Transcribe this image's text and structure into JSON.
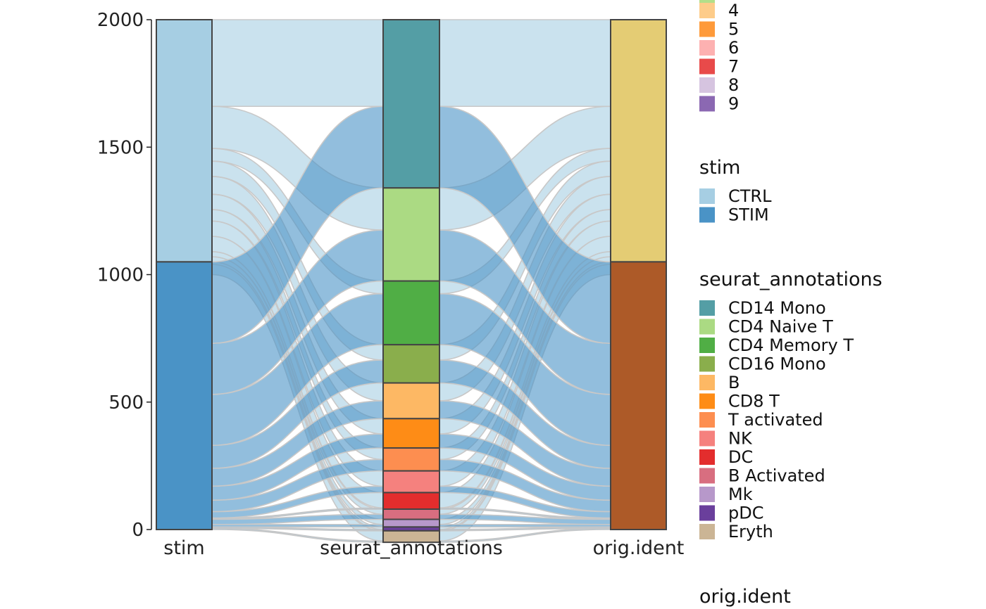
{
  "chart_data": {
    "type": "alluvial",
    "axes": [
      "stim",
      "seurat_annotations",
      "orig.ident"
    ],
    "ylim": [
      0,
      2000
    ],
    "yticks": [
      0,
      500,
      1000,
      1500,
      2000
    ],
    "colors": {
      "stim": {
        "CTRL": "#a6cee3",
        "STIM": "#4a93c6"
      },
      "orig.ident": {
        "CTRL": "#e4cc74",
        "STIM": "#ad5a28"
      },
      "seurat_annotations": {
        "CD14 Mono": "#549ea5",
        "CD4 Naive T": "#abda83",
        "CD4 Memory T": "#50ae45",
        "CD16 Mono": "#8aae4c",
        "B": "#fdb864",
        "CD8 T": "#fe8c16",
        "T activated": "#fd8e50",
        "NK": "#f5817e",
        "DC": "#e32d2d",
        "B Activated": "#d86e80",
        "Mk": "#b798ca",
        "pDC": "#6a3f9c",
        "Eryth": "#cbb595"
      }
    },
    "series": [
      {
        "name": "CD14 Mono",
        "values": [
          340,
          320
        ]
      },
      {
        "name": "CD4 Naive T",
        "values": [
          165,
          200
        ]
      },
      {
        "name": "CD4 Memory T",
        "values": [
          50,
          200
        ]
      },
      {
        "name": "CD16 Mono",
        "values": [
          60,
          90
        ]
      },
      {
        "name": "B",
        "values": [
          70,
          70
        ]
      },
      {
        "name": "CD8 T",
        "values": [
          60,
          55
        ]
      },
      {
        "name": "T activated",
        "values": [
          45,
          45
        ]
      },
      {
        "name": "NK",
        "values": [
          60,
          25
        ]
      },
      {
        "name": "DC",
        "values": [
          60,
          5
        ]
      },
      {
        "name": "B Activated",
        "values": [
          20,
          20
        ]
      },
      {
        "name": "Mk",
        "values": [
          20,
          10
        ]
      },
      {
        "name": "pDC",
        "values": [
          10,
          5
        ]
      },
      {
        "name": "Eryth",
        "values": [
          40,
          5
        ]
      }
    ],
    "stim_categories": [
      "CTRL",
      "STIM"
    ],
    "legend_partial": {
      "entries": [
        {
          "label": "4",
          "color": "#fdcc8a"
        },
        {
          "label": "5",
          "color": "#fe9a3a"
        },
        {
          "label": "6",
          "color": "#fdb1b1"
        },
        {
          "label": "7",
          "color": "#e84a4a"
        },
        {
          "label": "8",
          "color": "#d6c4e0"
        },
        {
          "label": "9",
          "color": "#8b68b2"
        }
      ]
    },
    "legend_stim": {
      "title": "stim",
      "entries": [
        {
          "label": "CTRL",
          "color": "#a6cee3"
        },
        {
          "label": "STIM",
          "color": "#4a93c6"
        }
      ]
    },
    "legend_annotations": {
      "title": "seurat_annotations",
      "entries": [
        {
          "label": "CD14 Mono",
          "color": "#549ea5"
        },
        {
          "label": "CD4 Naive T",
          "color": "#abda83"
        },
        {
          "label": "CD4 Memory T",
          "color": "#50ae45"
        },
        {
          "label": "CD16 Mono",
          "color": "#8aae4c"
        },
        {
          "label": "B",
          "color": "#fdb864"
        },
        {
          "label": "CD8 T",
          "color": "#fe8c16"
        },
        {
          "label": "T activated",
          "color": "#fd8e50"
        },
        {
          "label": "NK",
          "color": "#f5817e"
        },
        {
          "label": "DC",
          "color": "#e32d2d"
        },
        {
          "label": "B Activated",
          "color": "#d86e80"
        },
        {
          "label": "Mk",
          "color": "#b798ca"
        },
        {
          "label": "pDC",
          "color": "#6a3f9c"
        },
        {
          "label": "Eryth",
          "color": "#cbb595"
        }
      ]
    },
    "legend_orig": {
      "title": "orig.ident",
      "entries": []
    }
  }
}
